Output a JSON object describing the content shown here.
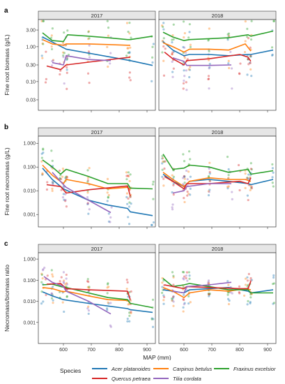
{
  "chart_data": [
    {
      "type": "line",
      "panel_label": "a",
      "ylabel": "Fine root biomass (g/L)",
      "yscale": "log",
      "ylim": [
        0.015,
        6.0
      ],
      "yticks": [
        3.0,
        1.0,
        0.3,
        0.1,
        0.03
      ],
      "ytick_labels": [
        "3.00",
        "1.00",
        "0.30",
        "0.10",
        "0.03"
      ],
      "facets": [
        {
          "label": "2017",
          "series": [
            {
              "name": "Acer platanoides",
              "x": [
                525,
                610,
                840,
                920
              ],
              "y": [
                1.9,
                0.85,
                0.4,
                0.29
              ]
            },
            {
              "name": "Carpinus betulus",
              "x": [
                525,
                560,
                600,
                610,
                690,
                760,
                830,
                840
              ],
              "y": [
                1.6,
                1.2,
                1.1,
                1.2,
                1.2,
                1.15,
                1.1,
                1.1
              ]
            },
            {
              "name": "Fraxinus excelsior",
              "x": [
                525,
                560,
                600,
                615,
                690,
                760,
                830,
                840,
                920
              ],
              "y": [
                2.5,
                1.5,
                1.4,
                2.2,
                2.0,
                1.8,
                1.6,
                1.6,
                2.0
              ]
            },
            {
              "name": "Quercus petraea",
              "x": [
                540,
                590,
                610,
                690,
                840
              ],
              "y": [
                0.28,
                0.22,
                0.3,
                0.36,
                0.5
              ]
            },
            {
              "name": "Tilia cordata",
              "x": [
                560,
                600,
                610,
                690,
                770
              ],
              "y": [
                0.35,
                0.3,
                0.55,
                0.43,
                0.4
              ]
            }
          ]
        },
        {
          "label": "2018",
          "series": [
            {
              "name": "Acer platanoides",
              "x": [
                525,
                560,
                600,
                620,
                690,
                760,
                830,
                840,
                920
              ],
              "y": [
                1.4,
                0.8,
                0.55,
                0.6,
                0.6,
                0.55,
                0.6,
                0.6,
                0.8
              ]
            },
            {
              "name": "Carpinus betulus",
              "x": [
                525,
                560,
                600,
                620,
                690,
                760,
                820,
                840
              ],
              "y": [
                1.3,
                1.0,
                0.7,
                0.85,
                0.85,
                0.8,
                1.2,
                0.75
              ]
            },
            {
              "name": "Fraxinus excelsior",
              "x": [
                525,
                560,
                600,
                620,
                690,
                760,
                830,
                840,
                920
              ],
              "y": [
                2.6,
                1.9,
                1.5,
                1.6,
                1.7,
                1.8,
                2.2,
                2.0,
                2.8
              ]
            },
            {
              "name": "Quercus petraea",
              "x": [
                530,
                560,
                600,
                610,
                690,
                800,
                830,
                840
              ],
              "y": [
                0.7,
                0.45,
                0.3,
                0.4,
                0.45,
                0.6,
                0.5,
                0.38
              ]
            },
            {
              "name": "Tilia cordata",
              "x": [
                560,
                600,
                610,
                690,
                770
              ],
              "y": [
                0.48,
                0.38,
                0.29,
                0.29,
                0.3
              ]
            }
          ]
        }
      ]
    },
    {
      "type": "line",
      "panel_label": "b",
      "ylabel": "Fine root necromass (g/L)",
      "yscale": "log",
      "ylim": [
        0.0003,
        2.0
      ],
      "yticks": [
        1.0,
        0.1,
        0.01,
        0.001
      ],
      "ytick_labels": [
        "1.000",
        "0.100",
        "0.010",
        "0.001"
      ],
      "facets": [
        {
          "label": "2017",
          "series": [
            {
              "name": "Acer platanoides",
              "x": [
                525,
                560,
                600,
                690,
                760,
                830,
                840,
                920
              ],
              "y": [
                0.09,
                0.03,
                0.012,
                0.004,
                0.0025,
                0.0018,
                0.0013,
                0.0009
              ]
            },
            {
              "name": "Carpinus betulus",
              "x": [
                525,
                560,
                600,
                610,
                690,
                760,
                830,
                840
              ],
              "y": [
                0.12,
                0.045,
                0.02,
                0.03,
                0.02,
                0.012,
                0.014,
                0.011
              ]
            },
            {
              "name": "Fraxinus excelsior",
              "x": [
                525,
                560,
                590,
                610,
                690,
                760,
                830,
                840,
                920
              ],
              "y": [
                0.2,
                0.1,
                0.05,
                0.08,
                0.04,
                0.02,
                0.02,
                0.013,
                0.012
              ]
            },
            {
              "name": "Quercus petraea",
              "x": [
                540,
                590,
                610,
                690,
                830,
                840
              ],
              "y": [
                0.018,
                0.015,
                0.008,
                0.011,
                0.016,
                0.006
              ]
            },
            {
              "name": "Tilia cordata",
              "x": [
                560,
                600,
                610,
                690,
                770
              ],
              "y": [
                0.06,
                0.018,
                0.014,
                0.004,
                0.0012
              ]
            }
          ]
        },
        {
          "label": "2018",
          "series": [
            {
              "name": "Acer platanoides",
              "x": [
                525,
                560,
                600,
                620,
                690,
                760,
                830,
                840,
                920
              ],
              "y": [
                0.05,
                0.025,
                0.015,
                0.025,
                0.03,
                0.025,
                0.02,
                0.018,
                0.03
              ]
            },
            {
              "name": "Carpinus betulus",
              "x": [
                525,
                560,
                600,
                620,
                690,
                760,
                820,
                840
              ],
              "y": [
                0.06,
                0.03,
                0.015,
                0.025,
                0.035,
                0.03,
                0.03,
                0.025
              ]
            },
            {
              "name": "Fraxinus excelsior",
              "x": [
                525,
                560,
                600,
                620,
                690,
                760,
                830,
                840,
                920
              ],
              "y": [
                0.35,
                0.08,
                0.09,
                0.12,
                0.1,
                0.06,
                0.08,
                0.05,
                0.07
              ]
            },
            {
              "name": "Quercus petraea",
              "x": [
                530,
                560,
                600,
                610,
                690,
                800,
                830,
                840
              ],
              "y": [
                0.04,
                0.025,
                0.012,
                0.02,
                0.02,
                0.025,
                0.02,
                0.035
              ]
            },
            {
              "name": "Tilia cordata",
              "x": [
                560,
                600,
                610,
                690,
                770
              ],
              "y": [
                0.008,
                0.01,
                0.015,
                0.02,
                0.02
              ]
            }
          ]
        }
      ]
    },
    {
      "type": "line",
      "panel_label": "c",
      "ylabel": "Necromass/biomass ratio",
      "yscale": "log",
      "ylim": [
        0.0001,
        2.0
      ],
      "yticks": [
        1.0,
        0.1,
        0.01,
        0.001
      ],
      "ytick_labels": [
        "1.000",
        "0.100",
        "0.010",
        "0.001"
      ],
      "xlabel": "MAP (mm)",
      "xlim": [
        510,
        930
      ],
      "xticks": [
        600,
        700,
        800,
        900
      ],
      "facets": [
        {
          "label": "2017",
          "series": [
            {
              "name": "Acer platanoides",
              "x": [
                525,
                560,
                600,
                690,
                760,
                830,
                840,
                920
              ],
              "y": [
                0.028,
                0.018,
                0.012,
                0.008,
                0.006,
                0.0045,
                0.004,
                0.003
              ]
            },
            {
              "name": "Carpinus betulus",
              "x": [
                525,
                560,
                600,
                610,
                690,
                760,
                830,
                840
              ],
              "y": [
                0.045,
                0.04,
                0.028,
                0.03,
                0.018,
                0.012,
                0.011,
                0.008
              ]
            },
            {
              "name": "Fraxinus excelsior",
              "x": [
                525,
                560,
                590,
                610,
                690,
                760,
                830,
                840,
                920
              ],
              "y": [
                0.06,
                0.065,
                0.05,
                0.045,
                0.025,
                0.015,
                0.012,
                0.008,
                0.005
              ]
            },
            {
              "name": "Quercus petraea",
              "x": [
                540,
                590,
                610,
                690,
                830,
                840
              ],
              "y": [
                0.065,
                0.07,
                0.04,
                0.035,
                0.03,
                0.012
              ]
            },
            {
              "name": "Tilia cordata",
              "x": [
                530,
                560,
                600,
                610,
                690,
                770
              ],
              "y": [
                0.15,
                0.08,
                0.05,
                0.03,
                0.01,
                0.0025
              ]
            }
          ]
        },
        {
          "label": "2018",
          "series": [
            {
              "name": "Acer platanoides",
              "x": [
                525,
                560,
                600,
                620,
                690,
                760,
                830,
                840,
                920
              ],
              "y": [
                0.035,
                0.03,
                0.025,
                0.035,
                0.04,
                0.045,
                0.03,
                0.025,
                0.035
              ]
            },
            {
              "name": "Carpinus betulus",
              "x": [
                525,
                560,
                600,
                620,
                690,
                760,
                820,
                840
              ],
              "y": [
                0.045,
                0.03,
                0.015,
                0.025,
                0.035,
                0.03,
                0.04,
                0.035
              ]
            },
            {
              "name": "Fraxinus excelsior",
              "x": [
                525,
                560,
                600,
                620,
                690,
                760,
                830,
                840,
                920
              ],
              "y": [
                0.12,
                0.05,
                0.06,
                0.07,
                0.05,
                0.035,
                0.035,
                0.025,
                0.025
              ]
            },
            {
              "name": "Quercus petraea",
              "x": [
                530,
                560,
                600,
                610,
                690,
                800,
                830,
                840
              ],
              "y": [
                0.06,
                0.05,
                0.04,
                0.05,
                0.045,
                0.04,
                0.04,
                0.09
              ]
            },
            {
              "name": "Tilia cordata",
              "x": [
                560,
                600,
                610,
                690,
                770
              ],
              "y": [
                0.03,
                0.025,
                0.05,
                0.06,
                0.08
              ]
            }
          ]
        }
      ]
    }
  ],
  "legend": {
    "title": "Species",
    "items": [
      {
        "name": "Acer platanoides",
        "color": "#1f77b4"
      },
      {
        "name": "Carpinus betulus",
        "color": "#ff7f0e"
      },
      {
        "name": "Fraxinus excelsior",
        "color": "#2ca02c"
      },
      {
        "name": "Quercus petraea",
        "color": "#d62728"
      },
      {
        "name": "Tilia cordata",
        "color": "#9467bd"
      }
    ]
  }
}
